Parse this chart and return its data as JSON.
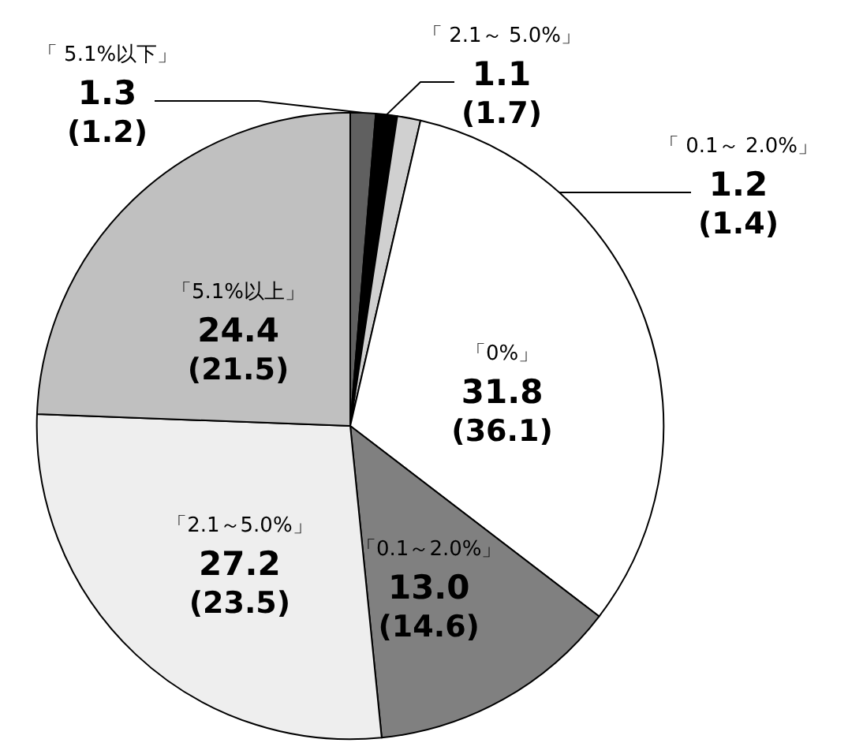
{
  "chart_data": {
    "type": "pie",
    "categories": [
      "「 5.1%以下」",
      "「 2.1～ 5.0%」",
      "「 0.1～ 2.0%」",
      "「0%」",
      "「0.1～2.0%」",
      "「2.1～5.0%」",
      "「5.1%以上」"
    ],
    "values": [
      1.3,
      1.1,
      1.2,
      31.8,
      13.0,
      27.2,
      24.4
    ],
    "colors": [
      "#606060",
      "#000000",
      "#d0d0d0",
      "#ffffff",
      "#808080",
      "#eeeeee",
      "#c0c0c0"
    ],
    "value_labels": [
      "1.3\n(1.2)",
      "1.1\n(1.7)",
      "1.2\n(1.4)",
      "31.8\n(36.1)",
      "13.0\n(14.6)",
      "27.2\n(23.5)",
      "24.4\n(21.5)"
    ],
    "legend": false
  }
}
